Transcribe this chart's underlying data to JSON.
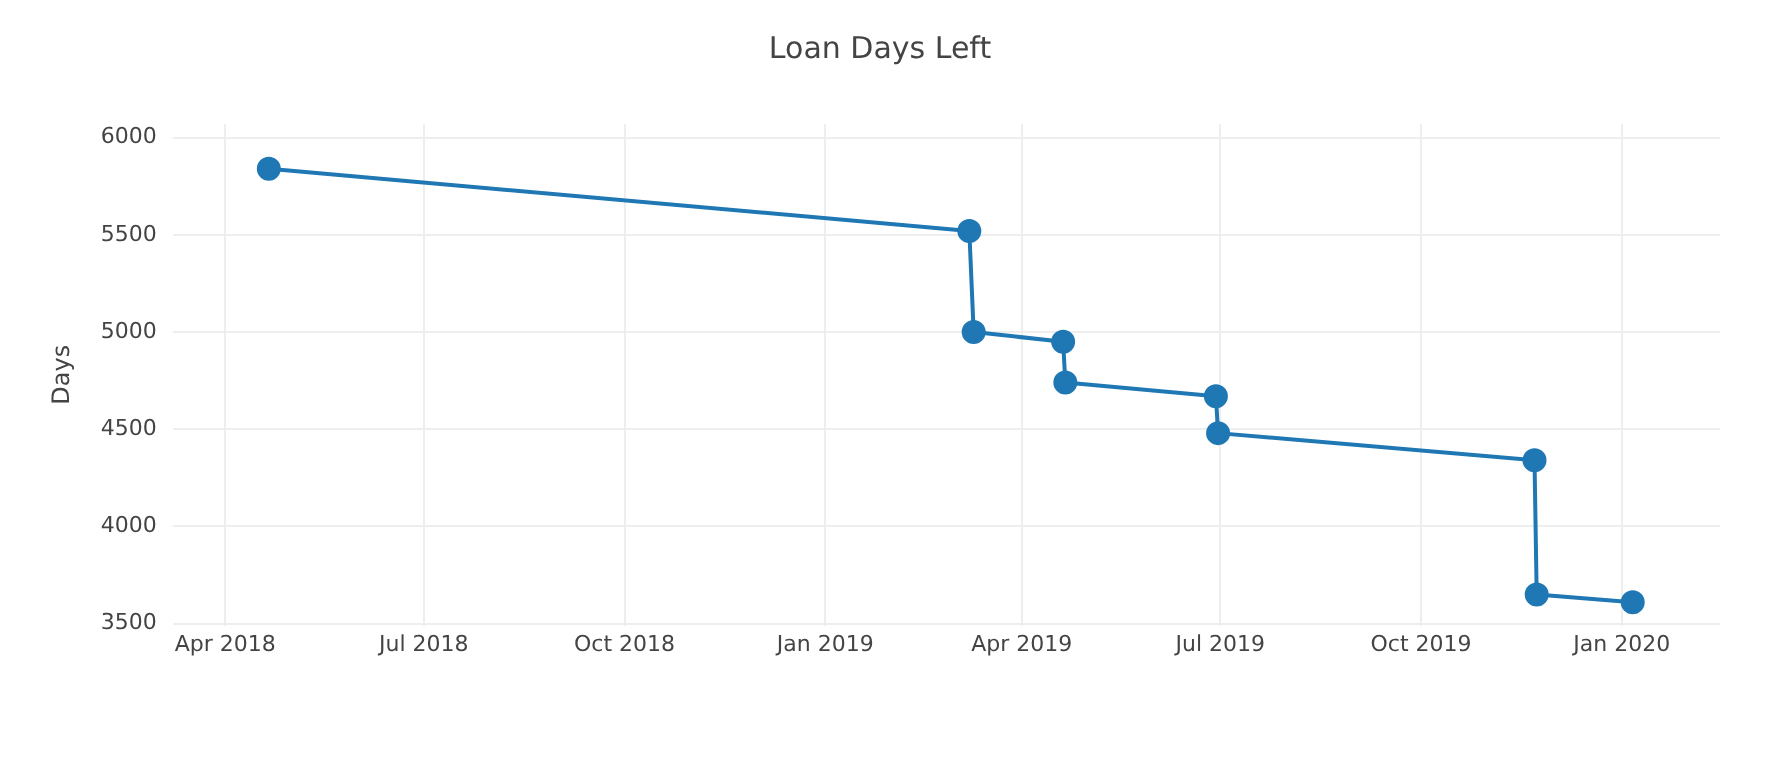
{
  "chart_data": {
    "type": "line",
    "title": "Loan Days Left",
    "ylabel": "Days",
    "x": [
      "2018-04-21",
      "2019-03-08",
      "2019-03-10",
      "2019-04-20",
      "2019-04-21",
      "2019-06-29",
      "2019-06-30",
      "2019-11-22",
      "2019-11-23",
      "2020-01-06"
    ],
    "series": [
      {
        "color": "#1f77b4",
        "values": [
          5840,
          5520,
          5000,
          4950,
          4740,
          4670,
          4480,
          4340,
          3650,
          3610
        ]
      }
    ],
    "xlim": [
      "2018-03-08",
      "2020-02-15"
    ],
    "xticks": [
      {
        "value": "2018-04-01",
        "label": "Apr 2018"
      },
      {
        "value": "2018-07-01",
        "label": "Jul 2018"
      },
      {
        "value": "2018-10-01",
        "label": "Oct 2018"
      },
      {
        "value": "2019-01-01",
        "label": "Jan 2019"
      },
      {
        "value": "2019-04-01",
        "label": "Apr 2019"
      },
      {
        "value": "2019-07-01",
        "label": "Jul 2019"
      },
      {
        "value": "2019-10-01",
        "label": "Oct 2019"
      },
      {
        "value": "2020-01-01",
        "label": "Jan 2020"
      }
    ],
    "ylim": [
      3490,
      6070
    ],
    "yticks": [
      3500,
      4000,
      4500,
      5000,
      5500,
      6000
    ],
    "grid": true,
    "marker": "circle",
    "line_style": "solid",
    "legend": false
  }
}
